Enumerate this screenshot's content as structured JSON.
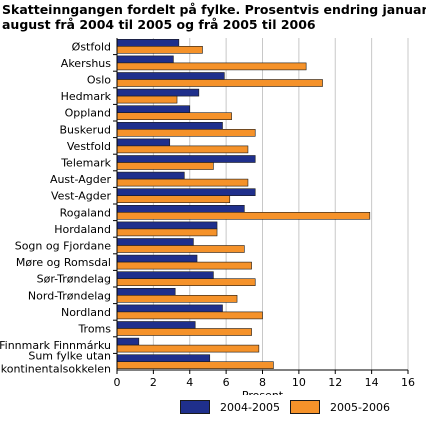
{
  "chart_data": {
    "type": "bar",
    "orientation": "horizontal",
    "title_lines": [
      "Skatteinngangen fordelt på fylke. Prosentvis endring januar-",
      "august frå 2004 til 2005 og frå 2005 til 2006"
    ],
    "categories": [
      "Østfold",
      "Akershus",
      "Oslo",
      "Hedmark",
      "Oppland",
      "Buskerud",
      "Vestfold",
      "Telemark",
      "Aust-Agder",
      "Vest-Agder",
      "Rogaland",
      "Hordaland",
      "Sogn og Fjordane",
      "Møre og Romsdal",
      "Sør-Trøndelag",
      "Nord-Trøndelag",
      "Nordland",
      "Troms",
      "Finnmark Finnmárku",
      [
        "Sum fylke utan",
        "kontinentalsokkelen"
      ]
    ],
    "series": [
      {
        "name": "2004-2005",
        "color": "#1f2f8c",
        "values": [
          3.4,
          3.1,
          5.9,
          4.5,
          4.0,
          5.8,
          2.9,
          7.6,
          3.7,
          7.6,
          7.0,
          5.5,
          4.2,
          4.4,
          5.3,
          3.2,
          5.8,
          4.3,
          1.2,
          5.1
        ]
      },
      {
        "name": "2005-2006",
        "color": "#f5922a",
        "values": [
          4.7,
          10.4,
          11.3,
          3.3,
          6.3,
          7.6,
          7.2,
          5.3,
          7.2,
          6.2,
          13.9,
          5.5,
          7.0,
          7.4,
          7.6,
          6.6,
          8.0,
          7.4,
          7.8,
          8.6
        ]
      }
    ],
    "x_ticks": [
      0,
      2,
      4,
      6,
      8,
      10,
      12,
      14,
      16
    ],
    "xlim": [
      0,
      16
    ],
    "xlabel": "Prosent",
    "ylabel": "",
    "grid": true,
    "legend_position": "bottom"
  }
}
